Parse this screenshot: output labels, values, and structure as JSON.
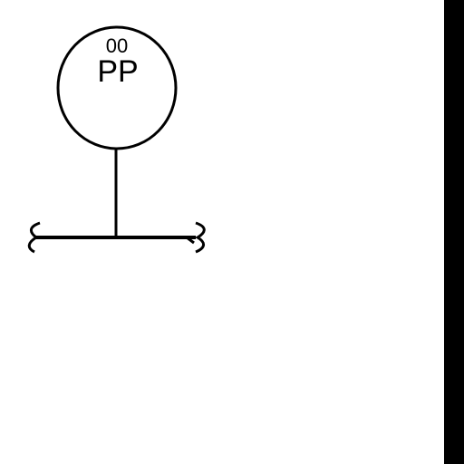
{
  "instrument": {
    "tag_number": "00",
    "tag_letters": "PP"
  },
  "colors": {
    "line": "#000000",
    "background": "#ffffff",
    "edge_bar": "#000000"
  }
}
